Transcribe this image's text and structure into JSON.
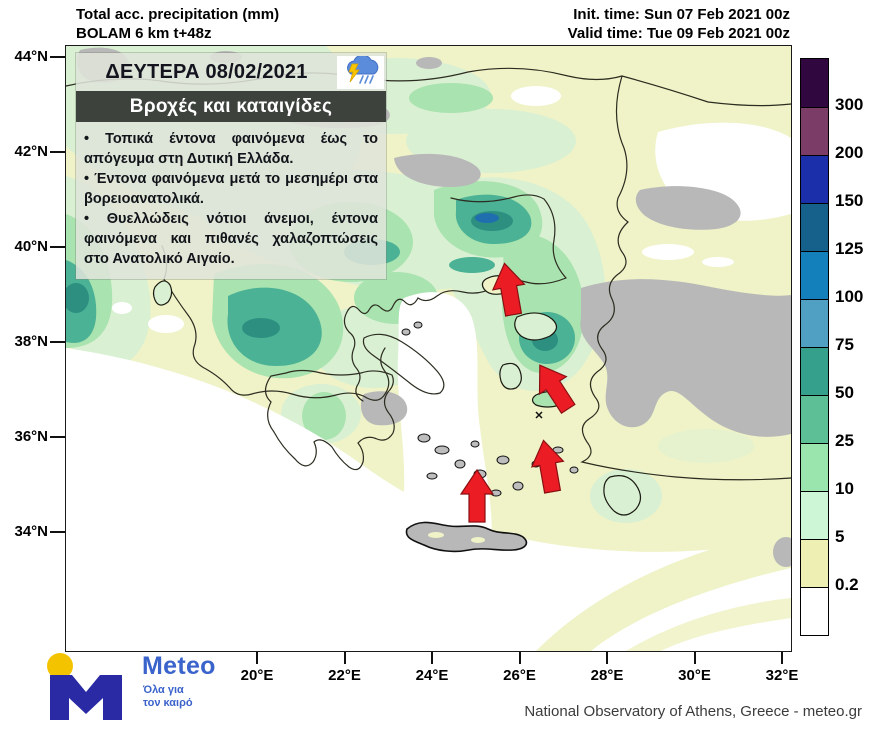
{
  "header": {
    "product": "Total acc. precipitation (mm)",
    "model": "BOLAM 6 km t+48z",
    "init_time": "Init. time: Sun 07 Feb 2021 00z",
    "valid_time": "Valid time: Tue 09 Feb 2021 00z"
  },
  "info_box": {
    "date": "ΔΕΥΤΕΡΑ 08/02/2021",
    "weather_icon": "storm-cloud-lightning-rain",
    "headline": "Βροχές και καταιγίδες",
    "bullets": [
      "Τοπικά έντονα φαινόμενα έως το απόγευμα στη Δυτική Ελλάδα.",
      "Έντονα φαινόμενα μετά το μεσημέρι στα βορειοανατολικά.",
      "Θυελλώδεις νότιοι άνεμοι, έντονα φαινόμενα και πιθανές χαλαζοπτώσεις στο Ανατολικό Αιγαίο."
    ]
  },
  "axes": {
    "lat_labels": [
      "44°N",
      "42°N",
      "40°N",
      "38°N",
      "36°N",
      "34°N"
    ],
    "lon_labels": [
      "20°E",
      "22°E",
      "24°E",
      "26°E",
      "28°E",
      "30°E",
      "32°E"
    ]
  },
  "colorbar": {
    "labels": [
      "300",
      "200",
      "150",
      "125",
      "100",
      "75",
      "50",
      "25",
      "10",
      "5",
      "0.2"
    ],
    "colors": [
      "#310740",
      "#7b3d68",
      "#1b2fab",
      "#15618c",
      "#1380bb",
      "#4fa0c2",
      "#35a18c",
      "#5dbf96",
      "#9ae5ae",
      "#cdf6d7",
      "#edf0b2",
      "#ffffff"
    ]
  },
  "map": {
    "arrow_color": "#ec1c24",
    "arrow_count": 4
  },
  "footer": {
    "logo_text": "Meteo",
    "logo_tagline": [
      "Όλα για",
      "τον καιρό"
    ],
    "attribution": "National Observatory of Athens, Greece - meteo.gr"
  }
}
